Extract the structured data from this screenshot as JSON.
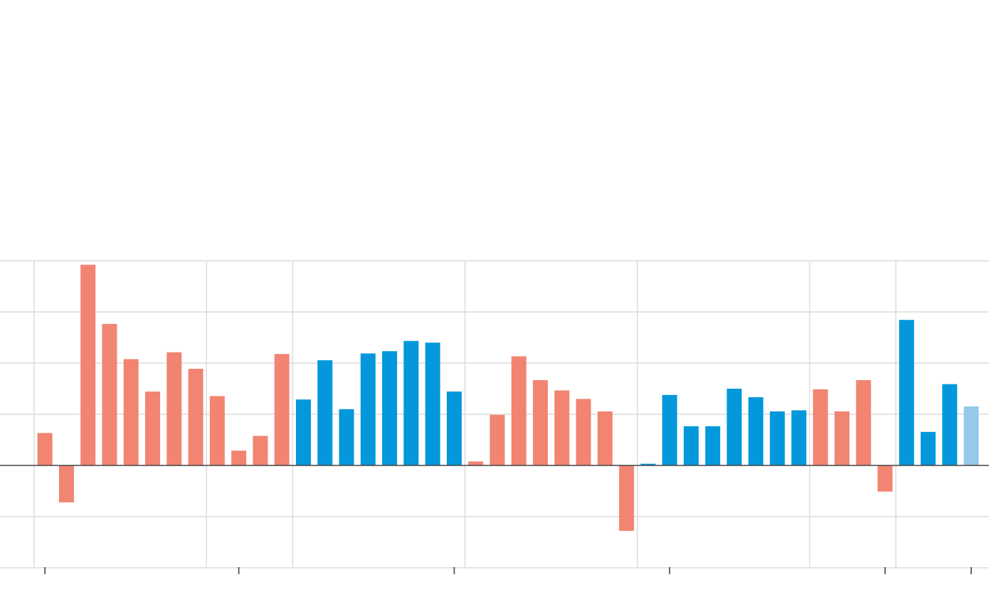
{
  "chart_data": {
    "type": "bar",
    "title": "",
    "xlabel": "",
    "ylabel": "",
    "ylim": [
      -1.9,
      3.6
    ],
    "y_gridlines": [
      -1.8,
      0,
      1.8,
      3.6
    ],
    "y_minor_gridlines": [
      -0.9,
      0.9,
      2.7
    ],
    "x_tick_positions": [
      0.5,
      9.5,
      19.5,
      29.5,
      39.5,
      43.5
    ],
    "x_vertical_gridlines": [
      0,
      8,
      12,
      20,
      28,
      36,
      40
    ],
    "grid": true,
    "legend": "none",
    "colors": {
      "negative_party": "#f28472",
      "positive_party": "#0398db",
      "provisional": "#96c8ea",
      "grid": "#dcdcdc",
      "zero_line": "#444444",
      "tick": "#444444"
    },
    "bars": [
      {
        "value": 0.57,
        "group": "negative_party"
      },
      {
        "value": -0.65,
        "group": "negative_party"
      },
      {
        "value": 3.53,
        "group": "negative_party"
      },
      {
        "value": 2.49,
        "group": "negative_party"
      },
      {
        "value": 1.87,
        "group": "negative_party"
      },
      {
        "value": 1.3,
        "group": "negative_party"
      },
      {
        "value": 1.99,
        "group": "negative_party"
      },
      {
        "value": 1.7,
        "group": "negative_party"
      },
      {
        "value": 1.22,
        "group": "negative_party"
      },
      {
        "value": 0.26,
        "group": "negative_party"
      },
      {
        "value": 0.52,
        "group": "negative_party"
      },
      {
        "value": 1.96,
        "group": "negative_party"
      },
      {
        "value": 1.16,
        "group": "positive_party"
      },
      {
        "value": 1.85,
        "group": "positive_party"
      },
      {
        "value": 0.99,
        "group": "positive_party"
      },
      {
        "value": 1.97,
        "group": "positive_party"
      },
      {
        "value": 2.01,
        "group": "positive_party"
      },
      {
        "value": 2.19,
        "group": "positive_party"
      },
      {
        "value": 2.16,
        "group": "positive_party"
      },
      {
        "value": 1.3,
        "group": "positive_party"
      },
      {
        "value": 0.07,
        "group": "negative_party"
      },
      {
        "value": 0.89,
        "group": "negative_party"
      },
      {
        "value": 1.92,
        "group": "negative_party"
      },
      {
        "value": 1.5,
        "group": "negative_party"
      },
      {
        "value": 1.32,
        "group": "negative_party"
      },
      {
        "value": 1.17,
        "group": "negative_party"
      },
      {
        "value": 0.95,
        "group": "negative_party"
      },
      {
        "value": -1.15,
        "group": "negative_party"
      },
      {
        "value": 0.03,
        "group": "positive_party"
      },
      {
        "value": 1.24,
        "group": "positive_party"
      },
      {
        "value": 0.69,
        "group": "positive_party"
      },
      {
        "value": 0.69,
        "group": "positive_party"
      },
      {
        "value": 1.35,
        "group": "positive_party"
      },
      {
        "value": 1.2,
        "group": "positive_party"
      },
      {
        "value": 0.95,
        "group": "positive_party"
      },
      {
        "value": 0.97,
        "group": "positive_party"
      },
      {
        "value": 1.34,
        "group": "negative_party"
      },
      {
        "value": 0.95,
        "group": "negative_party"
      },
      {
        "value": 1.5,
        "group": "negative_party"
      },
      {
        "value": -0.46,
        "group": "negative_party"
      },
      {
        "value": 2.56,
        "group": "positive_party"
      },
      {
        "value": 0.59,
        "group": "positive_party"
      },
      {
        "value": 1.43,
        "group": "positive_party"
      },
      {
        "value": 1.04,
        "group": "provisional"
      }
    ]
  }
}
